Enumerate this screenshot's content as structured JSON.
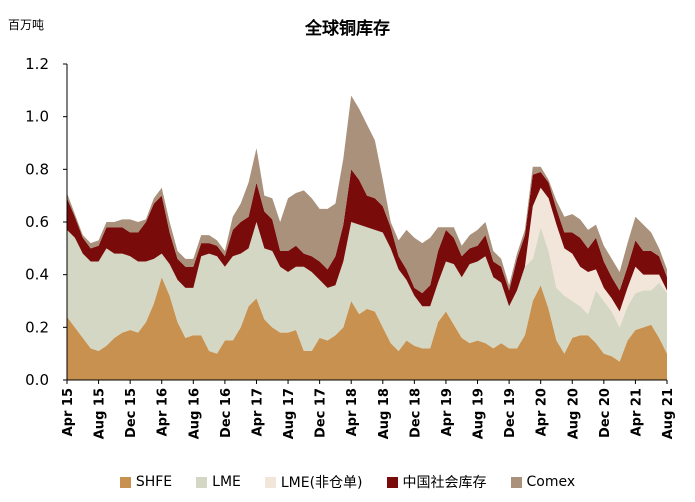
{
  "chart_data": {
    "type": "area",
    "stacked": true,
    "title": "全球铜库存",
    "ylabel": "百万吨",
    "xlabel": "",
    "ylim": [
      0,
      1.2
    ],
    "yticks": [
      "0.0",
      "0.2",
      "0.4",
      "0.6",
      "0.8",
      "1.0",
      "1.2"
    ],
    "xtick_labels": [
      {
        "index": 0,
        "label": "Apr 15"
      },
      {
        "index": 4,
        "label": "Aug 15"
      },
      {
        "index": 8,
        "label": "Dec 15"
      },
      {
        "index": 12,
        "label": "Apr 16"
      },
      {
        "index": 16,
        "label": "Aug 16"
      },
      {
        "index": 20,
        "label": "Dec 16"
      },
      {
        "index": 24,
        "label": "Apr 17"
      },
      {
        "index": 28,
        "label": "Aug 17"
      },
      {
        "index": 32,
        "label": "Dec 17"
      },
      {
        "index": 36,
        "label": "Apr 18"
      },
      {
        "index": 40,
        "label": "Aug 18"
      },
      {
        "index": 44,
        "label": "Dec 18"
      },
      {
        "index": 48,
        "label": "Apr 19"
      },
      {
        "index": 52,
        "label": "Aug 19"
      },
      {
        "index": 56,
        "label": "Dec 19"
      },
      {
        "index": 60,
        "label": "Apr 20"
      },
      {
        "index": 64,
        "label": "Aug 20"
      },
      {
        "index": 68,
        "label": "Dec 20"
      },
      {
        "index": 72,
        "label": "Apr 21"
      },
      {
        "index": 76,
        "label": "Aug 21"
      }
    ],
    "x_count": 77,
    "series": [
      {
        "name": "SHFE",
        "color": "#C8914F",
        "values": [
          0.24,
          0.2,
          0.16,
          0.12,
          0.11,
          0.13,
          0.16,
          0.18,
          0.19,
          0.18,
          0.22,
          0.29,
          0.39,
          0.32,
          0.22,
          0.16,
          0.17,
          0.17,
          0.11,
          0.1,
          0.15,
          0.15,
          0.2,
          0.28,
          0.31,
          0.23,
          0.2,
          0.18,
          0.18,
          0.19,
          0.11,
          0.11,
          0.16,
          0.15,
          0.17,
          0.2,
          0.3,
          0.25,
          0.27,
          0.26,
          0.2,
          0.14,
          0.11,
          0.15,
          0.13,
          0.12,
          0.12,
          0.22,
          0.26,
          0.21,
          0.16,
          0.14,
          0.15,
          0.14,
          0.12,
          0.14,
          0.12,
          0.12,
          0.17,
          0.3,
          0.36,
          0.27,
          0.15,
          0.1,
          0.16,
          0.17,
          0.17,
          0.14,
          0.1,
          0.09,
          0.07,
          0.15,
          0.19,
          0.2,
          0.21,
          0.16,
          0.1
        ]
      },
      {
        "name": "LME",
        "color": "#D4D7C3",
        "values": [
          0.33,
          0.34,
          0.32,
          0.33,
          0.34,
          0.37,
          0.32,
          0.3,
          0.28,
          0.27,
          0.23,
          0.17,
          0.09,
          0.12,
          0.16,
          0.19,
          0.18,
          0.3,
          0.37,
          0.37,
          0.28,
          0.32,
          0.28,
          0.22,
          0.29,
          0.27,
          0.29,
          0.25,
          0.23,
          0.24,
          0.32,
          0.3,
          0.22,
          0.2,
          0.19,
          0.25,
          0.3,
          0.34,
          0.31,
          0.31,
          0.36,
          0.36,
          0.31,
          0.23,
          0.19,
          0.16,
          0.16,
          0.15,
          0.19,
          0.23,
          0.23,
          0.3,
          0.3,
          0.33,
          0.27,
          0.23,
          0.16,
          0.22,
          0.26,
          0.16,
          0.22,
          0.22,
          0.2,
          0.22,
          0.14,
          0.11,
          0.08,
          0.2,
          0.2,
          0.17,
          0.13,
          0.13,
          0.14,
          0.14,
          0.13,
          0.21,
          0.23
        ]
      },
      {
        "name": "LME(非仓单)",
        "color": "#F2E6DA",
        "values": [
          0,
          0,
          0,
          0,
          0,
          0,
          0,
          0,
          0,
          0,
          0,
          0,
          0,
          0,
          0,
          0,
          0,
          0,
          0,
          0,
          0,
          0,
          0,
          0,
          0,
          0,
          0,
          0,
          0,
          0,
          0,
          0,
          0,
          0,
          0,
          0,
          0,
          0,
          0,
          0,
          0,
          0,
          0,
          0,
          0,
          0,
          0,
          0,
          0,
          0,
          0,
          0,
          0,
          0,
          0,
          0,
          0,
          0,
          0,
          0.2,
          0.15,
          0.2,
          0.24,
          0.18,
          0.18,
          0.15,
          0.16,
          0.08,
          0.05,
          0.05,
          0.06,
          0.07,
          0.1,
          0.06,
          0.06,
          0.03,
          0.01
        ]
      },
      {
        "name": "中国社会库存",
        "color": "#7A0B0B",
        "values": [
          0.12,
          0.08,
          0.06,
          0.05,
          0.06,
          0.08,
          0.1,
          0.1,
          0.09,
          0.11,
          0.15,
          0.21,
          0.22,
          0.12,
          0.08,
          0.08,
          0.08,
          0.05,
          0.04,
          0.04,
          0.04,
          0.1,
          0.12,
          0.12,
          0.15,
          0.14,
          0.12,
          0.06,
          0.08,
          0.08,
          0.05,
          0.06,
          0.07,
          0.07,
          0.11,
          0.14,
          0.2,
          0.17,
          0.12,
          0.12,
          0.1,
          0.08,
          0.05,
          0.04,
          0.03,
          0.05,
          0.08,
          0.12,
          0.12,
          0.1,
          0.08,
          0.06,
          0.06,
          0.08,
          0.06,
          0.06,
          0.06,
          0.12,
          0.12,
          0.12,
          0.06,
          0.06,
          0.06,
          0.06,
          0.08,
          0.11,
          0.09,
          0.12,
          0.1,
          0.08,
          0.08,
          0.08,
          0.1,
          0.09,
          0.09,
          0.07,
          0.05
        ]
      },
      {
        "name": "Comex",
        "color": "#A9917B",
        "values": [
          0.02,
          0.01,
          0.01,
          0.02,
          0.02,
          0.02,
          0.02,
          0.03,
          0.05,
          0.04,
          0.01,
          0.02,
          0.03,
          0.04,
          0.03,
          0.03,
          0.03,
          0.03,
          0.03,
          0.02,
          0.02,
          0.05,
          0.07,
          0.13,
          0.13,
          0.06,
          0.08,
          0.11,
          0.2,
          0.2,
          0.24,
          0.22,
          0.2,
          0.23,
          0.2,
          0.25,
          0.28,
          0.27,
          0.27,
          0.22,
          0.1,
          0.02,
          0.06,
          0.15,
          0.19,
          0.19,
          0.18,
          0.09,
          0.01,
          0.04,
          0.04,
          0.05,
          0.06,
          0.05,
          0.04,
          0.03,
          0.02,
          0.02,
          0.02,
          0.03,
          0.02,
          0.01,
          0.03,
          0.06,
          0.07,
          0.07,
          0.07,
          0.05,
          0.06,
          0.07,
          0.07,
          0.09,
          0.09,
          0.1,
          0.07,
          0.03,
          0.03
        ]
      }
    ],
    "legend": [
      "SHFE",
      "LME",
      "LME(非仓单)",
      "中国社会库存",
      "Comex"
    ],
    "legend_position": "bottom"
  }
}
